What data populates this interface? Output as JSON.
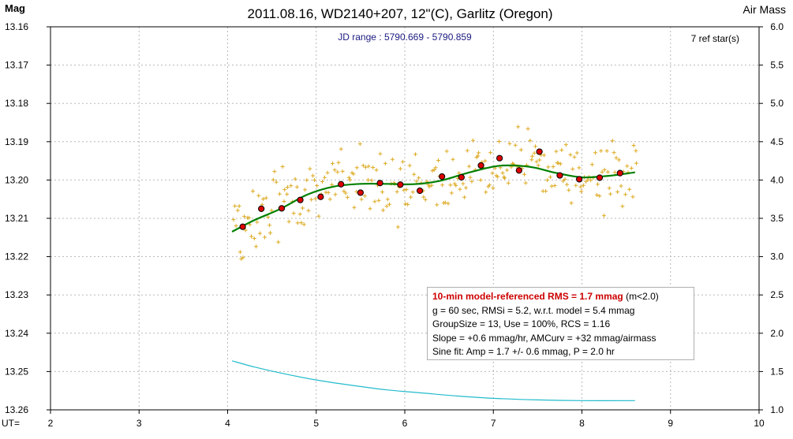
{
  "chart_data": {
    "type": "scatter",
    "title": "2011.08.16, WD2140+207, 12\"(C), Garlitz (Oregon)",
    "subtitle": "JD range : 5790.669 - 5790.859",
    "ref_stars": "7 ref star(s)",
    "ylabel_left": "Mag",
    "ylabel_right": "Air Mass",
    "xlabel": "UT=",
    "xlim": [
      2,
      10
    ],
    "ylim_left": [
      13.26,
      13.16
    ],
    "ylim_right": [
      1.0,
      6.0
    ],
    "grid": true,
    "x_ticks": [
      "2",
      "3",
      "4",
      "5",
      "6",
      "7",
      "8",
      "9",
      "10"
    ],
    "y_left_ticks": [
      "13.16",
      "13.17",
      "13.18",
      "13.19",
      "13.20",
      "13.21",
      "13.22",
      "13.23",
      "13.24",
      "13.25",
      "13.26"
    ],
    "y_right_ticks": [
      "6.0",
      "5.5",
      "5.0",
      "4.5",
      "4.0",
      "3.5",
      "3.0",
      "2.5",
      "2.0",
      "1.5",
      "1.0"
    ],
    "series": [
      {
        "kind": "binned_means",
        "color": "#dd0000",
        "x": [
          4.17,
          4.38,
          4.61,
          4.82,
          5.05,
          5.28,
          5.5,
          5.72,
          5.95,
          6.17,
          6.42,
          6.64,
          6.86,
          7.07,
          7.29,
          7.52,
          7.75,
          7.97,
          8.2,
          8.43
        ],
        "y": [
          13.2122,
          13.2075,
          13.2074,
          13.2052,
          13.2044,
          13.2011,
          13.2033,
          13.2008,
          13.2012,
          13.2028,
          13.1991,
          13.1993,
          13.1962,
          13.1943,
          13.1975,
          13.1926,
          13.1988,
          13.1998,
          13.1994,
          13.1982
        ]
      },
      {
        "kind": "model_fit",
        "color": "#008000",
        "x": [
          4.05,
          4.3,
          4.6,
          4.9,
          5.2,
          5.5,
          5.8,
          6.1,
          6.4,
          6.7,
          7.0,
          7.2,
          7.45,
          7.7,
          8.0,
          8.3,
          8.6
        ],
        "y": [
          13.2135,
          13.2105,
          13.2075,
          13.2038,
          13.2017,
          13.201,
          13.201,
          13.2011,
          13.2002,
          13.1982,
          13.1965,
          13.1962,
          13.1967,
          13.1981,
          13.1993,
          13.1989,
          13.198
        ]
      },
      {
        "kind": "air_mass",
        "axis": "right",
        "color": "#22bbcc",
        "x": [
          4.05,
          4.3,
          4.6,
          5.0,
          5.4,
          5.8,
          6.2,
          6.6,
          7.0,
          7.5,
          8.0,
          8.6
        ],
        "y": [
          1.64,
          1.56,
          1.48,
          1.39,
          1.32,
          1.26,
          1.22,
          1.18,
          1.15,
          1.13,
          1.12,
          1.12
        ]
      }
    ],
    "raw_points": {
      "kind": "individual_observations",
      "color": "#ddaa22",
      "count": 280,
      "x_range": [
        4.06,
        8.62
      ]
    }
  },
  "stats": {
    "rms_line": "10-min model-referenced RMS = 1.7 mmag",
    "rms_extra": " (m<2.0)",
    "line2": "g = 60 sec, RMSi = 5.2, w.r.t. model = 5.4 mmag",
    "line3": "GroupSize = 13, Use = 100%, RCS = 1.16",
    "line4": "Slope = +0.6 mmag/hr, AMCurv = +32 mmag/airmass",
    "line5": "Sine fit: Amp = 1.7 +/- 0.6 mmag, P = 2.0 hr"
  }
}
